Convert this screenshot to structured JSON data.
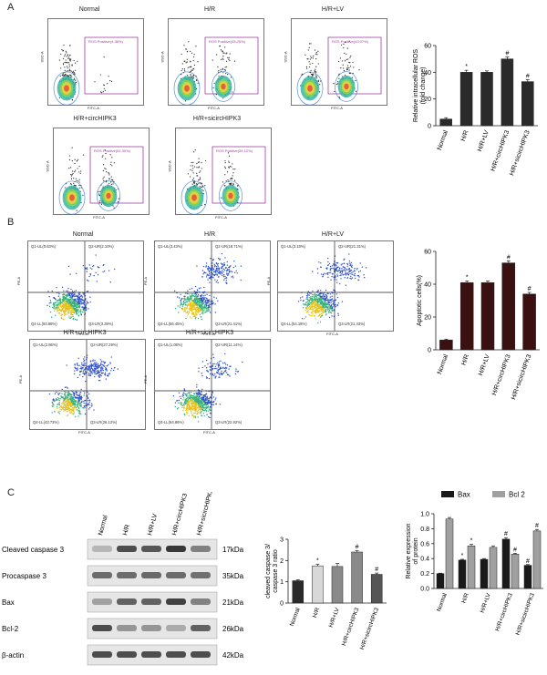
{
  "panels": {
    "A": "A",
    "B": "B",
    "C": "C"
  },
  "panel_a": {
    "plots": [
      {
        "title": "Normal",
        "gate": "ROS Positive(4.36%)"
      },
      {
        "title": "H/R",
        "gate": "ROS Positive(45.25%)"
      },
      {
        "title": "H/R+LV",
        "gate": "ROS Positive(43.07%)"
      },
      {
        "title": "H/R+circHIPK3",
        "gate": "ROS Positive(51.30%)"
      },
      {
        "title": "H/R+sicircHIPK3",
        "gate": "ROS Positive(34.12%)"
      }
    ],
    "axis_y": "SSC-A",
    "axis_x": "FITC-A"
  },
  "panel_b": {
    "plots": [
      {
        "title": "Normal",
        "q1": "Q1-UL(0.63%)",
        "q2": "Q2-UR(2.10%)",
        "q3": "Q3-LR(3.39%)",
        "q4": "Q4-LL(93.88%)"
      },
      {
        "title": "H/R",
        "q1": "Q1-UL(3.43%)",
        "q2": "Q2-UR(18.71%)",
        "q3": "Q3-LR(21.41%)",
        "q4": "Q4-LL(56.45%)"
      },
      {
        "title": "H/R+LV",
        "q1": "Q1-UL(3.18%)",
        "q2": "Q2-UR(21.31%)",
        "q3": "Q3-LR(21.33%)",
        "q4": "Q4-LL(54.18%)"
      },
      {
        "title": "H/R+circHIPK3",
        "q1": "Q1-UL(2.86%)",
        "q2": "Q2-UR(27.29%)",
        "q3": "Q3-LR(26.12%)",
        "q4": "Q4-LL(43.73%)"
      },
      {
        "title": "H/R+sicircHIPK3",
        "q1": "Q1-UL(1.08%)",
        "q2": "Q2-UR(11.14%)",
        "q3": "Q3-LR(22.92%)",
        "q4": "Q4-LL(64.86%)"
      }
    ],
    "axis_y": "PE-A",
    "axis_x": "FITC-A"
  },
  "panel_c": {
    "lanes": [
      "Normal",
      "H/R",
      "H/R+LV",
      "H/R+circHIPK3",
      "H/R+sicircHIPK3"
    ],
    "blots": [
      {
        "protein": "Cleaved caspase 3",
        "size": "17kDa"
      },
      {
        "protein": "Procaspase 3",
        "size": "35kDa"
      },
      {
        "protein": "Bax",
        "size": "21kDa"
      },
      {
        "protein": "Bcl-2",
        "size": "26kDa"
      },
      {
        "protein": "β-actin",
        "size": "42kDa"
      }
    ]
  },
  "chart_data": [
    {
      "type": "bar",
      "categories": [
        "Normal",
        "H/R",
        "H/R+LV",
        "H/R+circHIPK3",
        "H/R+sicircHIPK3"
      ],
      "values": [
        5,
        40,
        40,
        50,
        33
      ],
      "errors": [
        1,
        1.5,
        1,
        1.5,
        1.5
      ],
      "markers": [
        "",
        "*",
        "",
        "#",
        "#"
      ],
      "ylabel": "Relative intracellular ROS\n(fold change)",
      "ylim": [
        0,
        60
      ],
      "yticks": [
        0,
        20,
        40,
        60
      ],
      "color": "#2a2a2a"
    },
    {
      "type": "bar",
      "categories": [
        "Normal",
        "H/R",
        "H/R+LV",
        "H/R+circHIPK3",
        "H/R+sicircHIPK3"
      ],
      "values": [
        6,
        41,
        41,
        53,
        34
      ],
      "errors": [
        0.5,
        1,
        1,
        1.2,
        1
      ],
      "markers": [
        "",
        "*",
        "",
        "#",
        "#"
      ],
      "ylabel": "Apoptotic cells(%)",
      "ylim": [
        0,
        60
      ],
      "yticks": [
        0,
        20,
        40,
        60
      ],
      "color": "#3a1010"
    },
    {
      "type": "bar",
      "categories": [
        "Normal",
        "H/R",
        "H/R+LV",
        "H/R+circHIPK3",
        "H/R+sicircHIPK3"
      ],
      "values": [
        1.05,
        1.75,
        1.72,
        2.4,
        1.35
      ],
      "errors": [
        0.05,
        0.08,
        0.15,
        0.06,
        0.06
      ],
      "markers": [
        "",
        "*",
        "",
        "#",
        "#"
      ],
      "bar_colors": [
        "#2a2a2a",
        "#d8d8d8",
        "#8a8a8a",
        "#8a8a8a",
        "#555555"
      ],
      "ylabel": "cleaved caspase 3/\ncaspase 3 ratio",
      "ylim": [
        0,
        3
      ],
      "yticks": [
        0,
        1,
        2,
        3
      ]
    },
    {
      "type": "bar",
      "categories": [
        "Normal",
        "H/R",
        "H/R+LV",
        "H/R+circHIPK3",
        "H/R+sicircHIPK3"
      ],
      "series": [
        {
          "name": "Bax",
          "values": [
            0.2,
            0.38,
            0.39,
            0.66,
            0.31
          ],
          "errors": [
            0.005,
            0.01,
            0.01,
            0.02,
            0.01
          ],
          "markers": [
            "",
            "*",
            "",
            "#",
            "#"
          ],
          "color": "#1a1a1a"
        },
        {
          "name": "Bcl 2",
          "values": [
            0.93,
            0.57,
            0.55,
            0.46,
            0.77
          ],
          "errors": [
            0.02,
            0.02,
            0.02,
            0.01,
            0.02
          ],
          "markers": [
            "",
            "*",
            "",
            "#",
            "#"
          ],
          "color": "#a0a0a0"
        }
      ],
      "ylabel": "Relative expression\nof protein",
      "ylim": [
        0,
        1.0
      ],
      "yticks": [
        "0.0",
        "0.2",
        "0.4",
        "0.6",
        "0.8",
        "1.0"
      ],
      "legend_placement": "top"
    }
  ]
}
